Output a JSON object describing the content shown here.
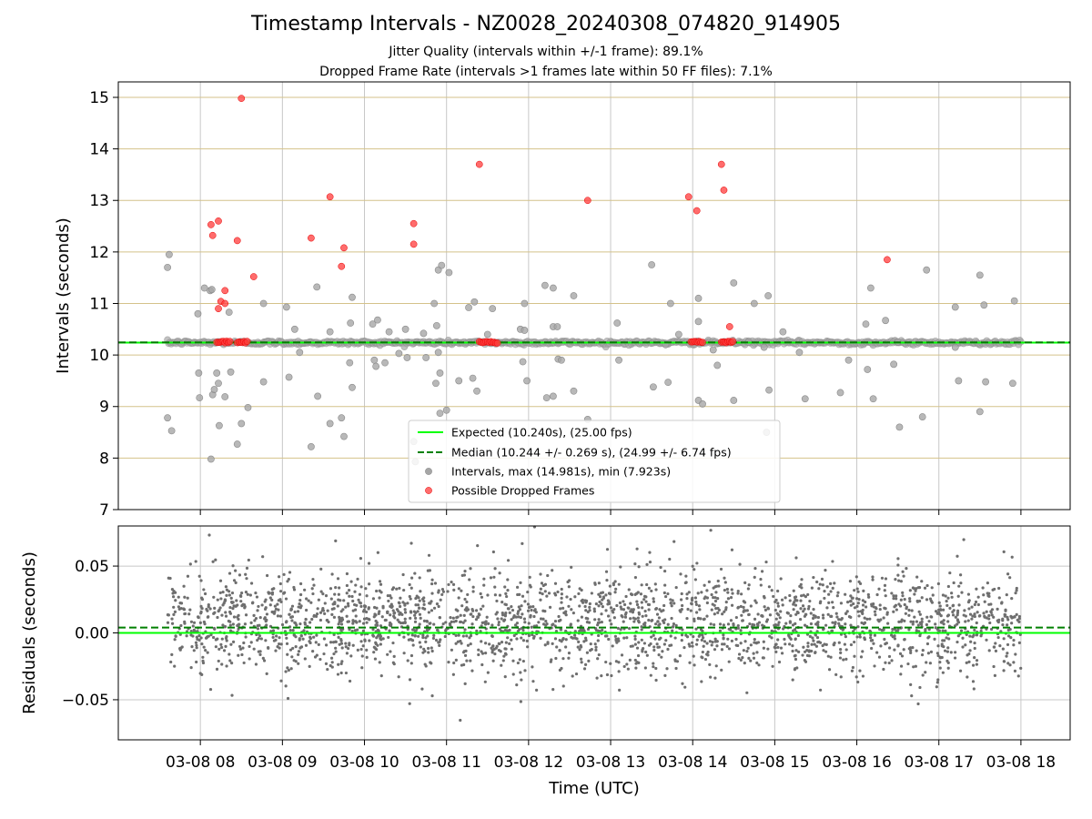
{
  "header": {
    "title": "Timestamp Intervals - NZ0028_20240308_074820_914905",
    "subtitle_1": "Jitter Quality (intervals within +/-1 frame): 89.1%",
    "subtitle_2": "Dropped Frame Rate (intervals >1 frames late within 50 FF files): 7.1%"
  },
  "colors": {
    "expected": "#00ff00",
    "median": "#008000",
    "intervals": "#a6a6a6",
    "dropped": "#ff3b3b",
    "residuals": "#6e6e6e",
    "hgrid_top": "#d4c28a",
    "grid": "#c8c8c8"
  },
  "chart_data": [
    {
      "type": "scatter",
      "panel": "intervals",
      "xlabel": "",
      "ylabel": "Intervals (seconds)",
      "ylim": [
        7,
        15.3
      ],
      "yticks": [
        "7",
        "8",
        "9",
        "10",
        "11",
        "12",
        "13",
        "14",
        "15"
      ],
      "grid": true,
      "legend_position": "bottom-center",
      "legend": [
        "Expected (10.240s), (25.00 fps)",
        "Median (10.244 +/- 0.269 s), (24.99 +/- 6.74 fps)",
        "Intervals, max (14.981s), min (7.923s)",
        "Possible Dropped Frames"
      ],
      "expected": 10.24,
      "median": 10.244,
      "series": [
        {
          "name": "Intervals, max (14.981s), min (7.923s)",
          "points": [
            [
              7.6,
              8.78
            ],
            [
              7.65,
              8.53
            ],
            [
              7.62,
              11.95
            ],
            [
              7.6,
              11.7
            ],
            [
              7.97,
              10.8
            ],
            [
              7.98,
              9.65
            ],
            [
              7.99,
              9.17
            ],
            [
              8.05,
              11.3
            ],
            [
              8.12,
              11.25
            ],
            [
              8.14,
              11.27
            ],
            [
              8.13,
              7.98
            ],
            [
              8.15,
              9.23
            ],
            [
              8.17,
              9.33
            ],
            [
              8.2,
              9.65
            ],
            [
              8.22,
              9.45
            ],
            [
              8.23,
              8.63
            ],
            [
              8.3,
              9.19
            ],
            [
              8.37,
              9.67
            ],
            [
              8.35,
              10.83
            ],
            [
              8.45,
              8.27
            ],
            [
              8.5,
              8.67
            ],
            [
              8.58,
              8.98
            ],
            [
              8.77,
              11.0
            ],
            [
              8.77,
              9.48
            ],
            [
              9.05,
              10.93
            ],
            [
              9.08,
              9.57
            ],
            [
              9.15,
              10.5
            ],
            [
              9.21,
              10.05
            ],
            [
              9.35,
              8.22
            ],
            [
              9.43,
              9.2
            ],
            [
              9.42,
              11.32
            ],
            [
              9.58,
              10.45
            ],
            [
              9.58,
              8.67
            ],
            [
              9.72,
              8.78
            ],
            [
              9.75,
              8.42
            ],
            [
              9.82,
              9.85
            ],
            [
              9.83,
              10.62
            ],
            [
              9.85,
              11.12
            ],
            [
              9.85,
              9.37
            ],
            [
              10.1,
              10.6
            ],
            [
              10.12,
              9.9
            ],
            [
              10.14,
              9.78
            ],
            [
              10.16,
              10.68
            ],
            [
              10.25,
              9.85
            ],
            [
              10.3,
              10.45
            ],
            [
              10.42,
              10.03
            ],
            [
              10.52,
              9.95
            ],
            [
              10.5,
              10.5
            ],
            [
              10.6,
              8.32
            ],
            [
              10.62,
              7.93
            ],
            [
              10.72,
              10.42
            ],
            [
              10.75,
              9.95
            ],
            [
              10.85,
              11.0
            ],
            [
              10.87,
              9.45
            ],
            [
              10.88,
              10.57
            ],
            [
              10.9,
              11.65
            ],
            [
              10.92,
              9.65
            ],
            [
              10.9,
              10.05
            ],
            [
              10.92,
              8.87
            ],
            [
              10.94,
              11.74
            ],
            [
              11.0,
              8.93
            ],
            [
              11.03,
              11.6
            ],
            [
              11.15,
              9.5
            ],
            [
              11.27,
              10.92
            ],
            [
              11.32,
              9.55
            ],
            [
              11.34,
              11.03
            ],
            [
              11.37,
              9.3
            ],
            [
              11.5,
              10.4
            ],
            [
              11.56,
              10.9
            ],
            [
              11.9,
              10.5
            ],
            [
              11.93,
              9.87
            ],
            [
              11.95,
              11.0
            ],
            [
              11.95,
              10.48
            ],
            [
              11.98,
              9.5
            ],
            [
              12.2,
              11.35
            ],
            [
              12.22,
              9.17
            ],
            [
              12.3,
              11.3
            ],
            [
              12.3,
              9.2
            ],
            [
              12.3,
              10.55
            ],
            [
              12.35,
              10.55
            ],
            [
              12.36,
              9.92
            ],
            [
              12.4,
              9.9
            ],
            [
              12.55,
              11.15
            ],
            [
              12.55,
              9.3
            ],
            [
              12.72,
              8.75
            ],
            [
              13.1,
              9.9
            ],
            [
              13.08,
              10.62
            ],
            [
              13.5,
              11.75
            ],
            [
              13.52,
              9.38
            ],
            [
              13.67,
              10.2
            ],
            [
              13.7,
              9.47
            ],
            [
              13.73,
              11.0
            ],
            [
              13.83,
              10.4
            ],
            [
              14.07,
              11.1
            ],
            [
              14.07,
              10.65
            ],
            [
              14.07,
              9.12
            ],
            [
              14.12,
              9.05
            ],
            [
              14.25,
              10.1
            ],
            [
              14.3,
              9.8
            ],
            [
              14.5,
              11.4
            ],
            [
              14.5,
              9.12
            ],
            [
              14.68,
              10.25
            ],
            [
              14.75,
              11.0
            ],
            [
              14.87,
              10.15
            ],
            [
              14.9,
              8.5
            ],
            [
              14.92,
              11.15
            ],
            [
              14.93,
              9.32
            ],
            [
              15.1,
              10.45
            ],
            [
              15.3,
              10.05
            ],
            [
              15.37,
              9.15
            ],
            [
              15.8,
              9.27
            ],
            [
              15.9,
              9.9
            ],
            [
              16.11,
              10.6
            ],
            [
              16.13,
              9.72
            ],
            [
              16.17,
              11.3
            ],
            [
              16.2,
              9.15
            ],
            [
              16.35,
              10.67
            ],
            [
              16.45,
              9.82
            ],
            [
              16.5,
              10.25
            ],
            [
              16.52,
              8.6
            ],
            [
              16.8,
              8.8
            ],
            [
              16.85,
              11.65
            ],
            [
              17.2,
              10.15
            ],
            [
              17.24,
              9.5
            ],
            [
              17.2,
              10.93
            ],
            [
              17.5,
              8.9
            ],
            [
              17.5,
              11.55
            ],
            [
              17.57,
              9.48
            ],
            [
              17.55,
              10.97
            ],
            [
              17.9,
              9.45
            ],
            [
              17.92,
              11.05
            ]
          ]
        },
        {
          "name": "Possible Dropped Frames",
          "points": [
            [
              8.13,
              12.53
            ],
            [
              8.15,
              12.32
            ],
            [
              8.22,
              12.6
            ],
            [
              8.25,
              11.04
            ],
            [
              8.22,
              10.9
            ],
            [
              8.3,
              11.0
            ],
            [
              8.3,
              11.25
            ],
            [
              8.45,
              12.22
            ],
            [
              8.5,
              14.98
            ],
            [
              8.65,
              11.52
            ],
            [
              9.35,
              12.27
            ],
            [
              9.58,
              13.07
            ],
            [
              9.72,
              11.72
            ],
            [
              9.75,
              12.08
            ],
            [
              10.6,
              12.55
            ],
            [
              10.6,
              12.15
            ],
            [
              11.4,
              13.7
            ],
            [
              12.72,
              13.0
            ],
            [
              13.95,
              13.07
            ],
            [
              14.05,
              12.8
            ],
            [
              14.35,
              13.7
            ],
            [
              14.38,
              13.2
            ],
            [
              14.45,
              10.55
            ],
            [
              16.37,
              11.85
            ]
          ],
          "clusters": [
            [
              8.2,
              8.37,
              10.25
            ],
            [
              8.45,
              8.58,
              10.25
            ],
            [
              11.4,
              11.62,
              10.25
            ],
            [
              13.98,
              14.12,
              10.25
            ],
            [
              14.35,
              14.5,
              10.25
            ]
          ]
        }
      ],
      "baseline_range": [
        7.6,
        18.0
      ],
      "baseline_value": 10.24
    },
    {
      "type": "scatter",
      "panel": "residuals",
      "xlabel": "Time (UTC)",
      "ylabel": "Residuals (seconds)",
      "ylim": [
        -0.08,
        0.08
      ],
      "yticks": [
        "−0.05",
        "0.00",
        "0.05"
      ],
      "xlim": [
        7.0,
        18.6
      ],
      "xticks": [
        "03-08 08",
        "03-08 09",
        "03-08 10",
        "03-08 11",
        "03-08 12",
        "03-08 13",
        "03-08 14",
        "03-08 15",
        "03-08 16",
        "03-08 17",
        "03-08 18"
      ],
      "xtick_hours": [
        8,
        9,
        10,
        11,
        12,
        13,
        14,
        15,
        16,
        17,
        18
      ],
      "expected": 0.0,
      "median": 0.004,
      "residual_std": 0.019,
      "residual_mean": 0.008,
      "point_count": 2600,
      "x_range": [
        7.6,
        18.0
      ]
    }
  ]
}
